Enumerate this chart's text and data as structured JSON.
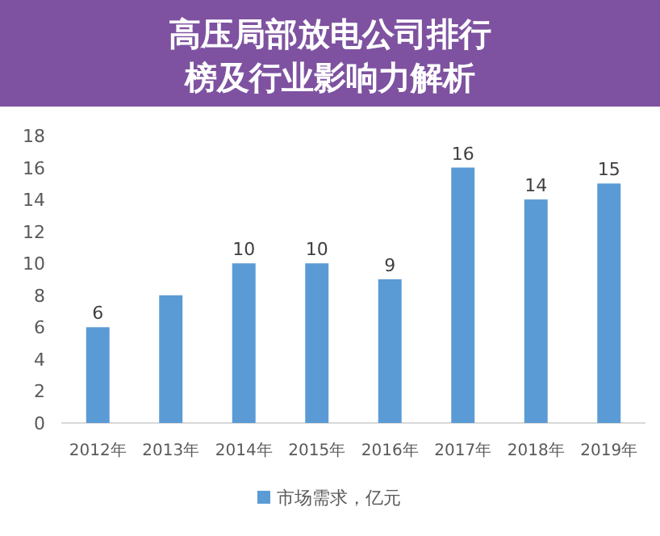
{
  "chart_data": {
    "type": "bar",
    "title": "高压局部放电公司排行榜及行业影响力解析",
    "categories": [
      "2012年",
      "2013年",
      "2014年",
      "2015年",
      "2016年",
      "2017年",
      "2018年",
      "2019年"
    ],
    "series": [
      {
        "name": "市场需求，亿元",
        "color": "#5b9bd5",
        "values": [
          6,
          8,
          10,
          10,
          9,
          16,
          14,
          15
        ],
        "value_labels": [
          "6",
          null,
          "10",
          "10",
          "9",
          "16",
          "14",
          "15"
        ]
      }
    ],
    "ylim": [
      0,
      18
    ],
    "yticks": [
      0,
      2,
      4,
      6,
      8,
      10,
      12,
      14,
      16,
      18
    ],
    "grid": false,
    "legend": "bottom"
  }
}
